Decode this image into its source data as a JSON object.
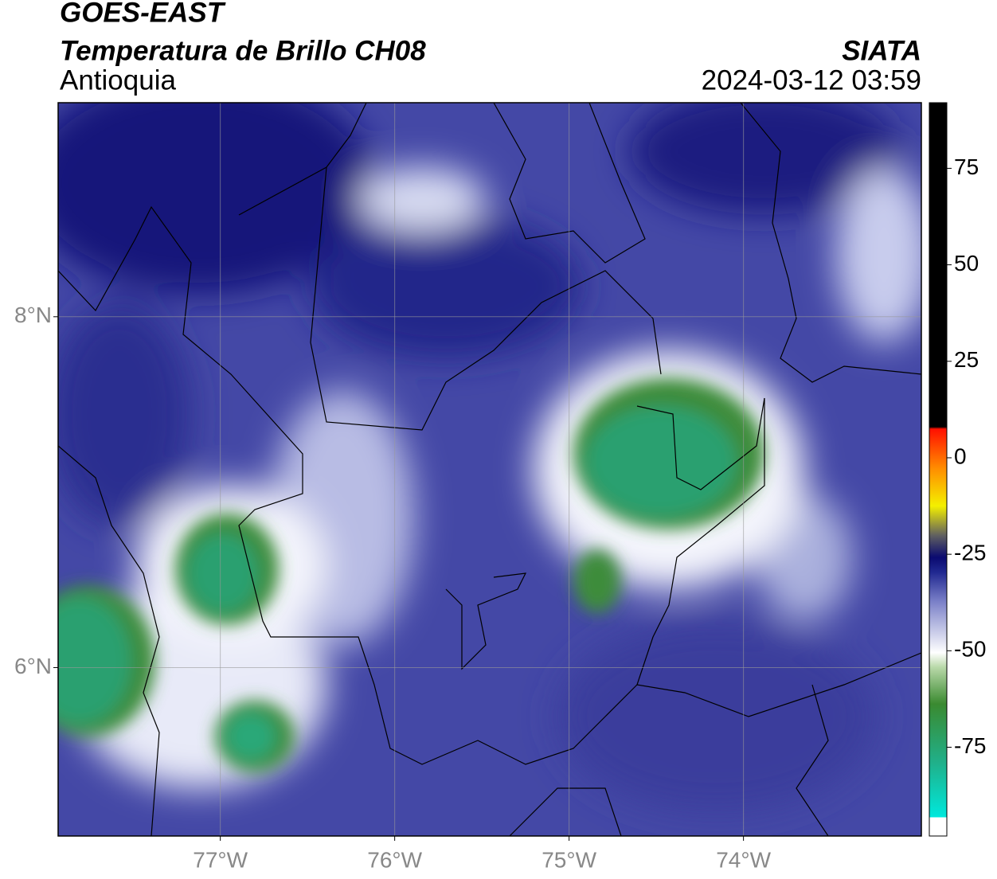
{
  "map": {
    "title": "GOES-EAST",
    "subtitle": "Temperatura de Brillo CH08",
    "region": "Antioquia",
    "source": "SIATA",
    "datetime": "2024-03-12 03:59",
    "xlim": [
      -77.93,
      -72.98
    ],
    "ylim": [
      5.04,
      9.22
    ],
    "xticks": [
      {
        "value": -77,
        "label": "77°W"
      },
      {
        "value": -76,
        "label": "76°W"
      },
      {
        "value": -75,
        "label": "75°W"
      },
      {
        "value": -74,
        "label": "74°W"
      }
    ],
    "yticks": [
      {
        "value": 8,
        "label": "8°N"
      },
      {
        "value": 6,
        "label": "6°N"
      }
    ],
    "grid": true,
    "colorbar": {
      "lim": [
        -98,
        92
      ],
      "ticks": [
        75,
        50,
        25,
        0,
        -25,
        -50,
        -75
      ]
    }
  }
}
